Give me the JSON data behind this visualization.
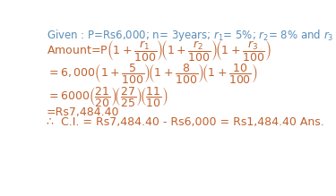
{
  "background_color": "#ffffff",
  "text_color_given": "#5B8DB8",
  "text_color_formula": "#C0622F",
  "fig_width": 3.75,
  "fig_height": 2.19,
  "dpi": 100
}
